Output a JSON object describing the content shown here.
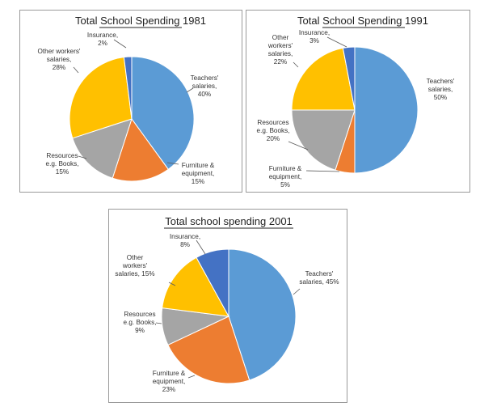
{
  "chart_data": [
    {
      "type": "pie",
      "title": "Total School Spending 1981",
      "categories": [
        "Teachers' salaries",
        "Furniture & equipment",
        "Resources e.g. Books",
        "Other workers' salaries",
        "Insurance"
      ],
      "values": [
        40,
        15,
        15,
        28,
        2
      ],
      "unit": "%",
      "labels": [
        [
          "Teachers'",
          "salaries,",
          "40%"
        ],
        [
          "Furniture &",
          "equipment,",
          "15%"
        ],
        [
          "Resources",
          "e.g. Books,",
          "15%"
        ],
        [
          "Other workers'",
          "salaries,",
          "28%"
        ],
        [
          "Insurance,",
          "2%"
        ]
      ]
    },
    {
      "type": "pie",
      "title": "Total School Spending 1991",
      "categories": [
        "Teachers' salaries",
        "Furniture & equipment",
        "Resources e.g. Books",
        "Other workers' salaries",
        "Insurance"
      ],
      "values": [
        50,
        5,
        20,
        22,
        3
      ],
      "unit": "%",
      "labels": [
        [
          "Teachers'",
          "salaries,",
          "50%"
        ],
        [
          "Furniture &",
          "equipment,",
          "5%"
        ],
        [
          "Resources",
          "e.g. Books,",
          "20%"
        ],
        [
          "Other",
          "workers'",
          "salaries,",
          "22%"
        ],
        [
          "Insurance,",
          "3%"
        ]
      ]
    },
    {
      "type": "pie",
      "title": "Total school spending 2001",
      "categories": [
        "Teachers' salaries",
        "Furniture & equipment",
        "Resources e.g. Books",
        "Other workers' salaries",
        "Insurance"
      ],
      "values": [
        45,
        23,
        9,
        15,
        8
      ],
      "unit": "%",
      "labels": [
        [
          "Teachers'",
          "salaries, 45%"
        ],
        [
          "Furniture &",
          "equipment,",
          "23%"
        ],
        [
          "Resources",
          "e.g. Books,",
          "9%"
        ],
        [
          "Other",
          "workers'",
          "salaries, 15%"
        ],
        [
          "Insurance,",
          "8%"
        ]
      ]
    }
  ],
  "colors": {
    "slices": [
      "#5b9bd5",
      "#ed7d31",
      "#a5a5a5",
      "#ffc000",
      "#4472c4"
    ],
    "panel_border": "#9a9a9a",
    "leader_line": "#595959"
  }
}
